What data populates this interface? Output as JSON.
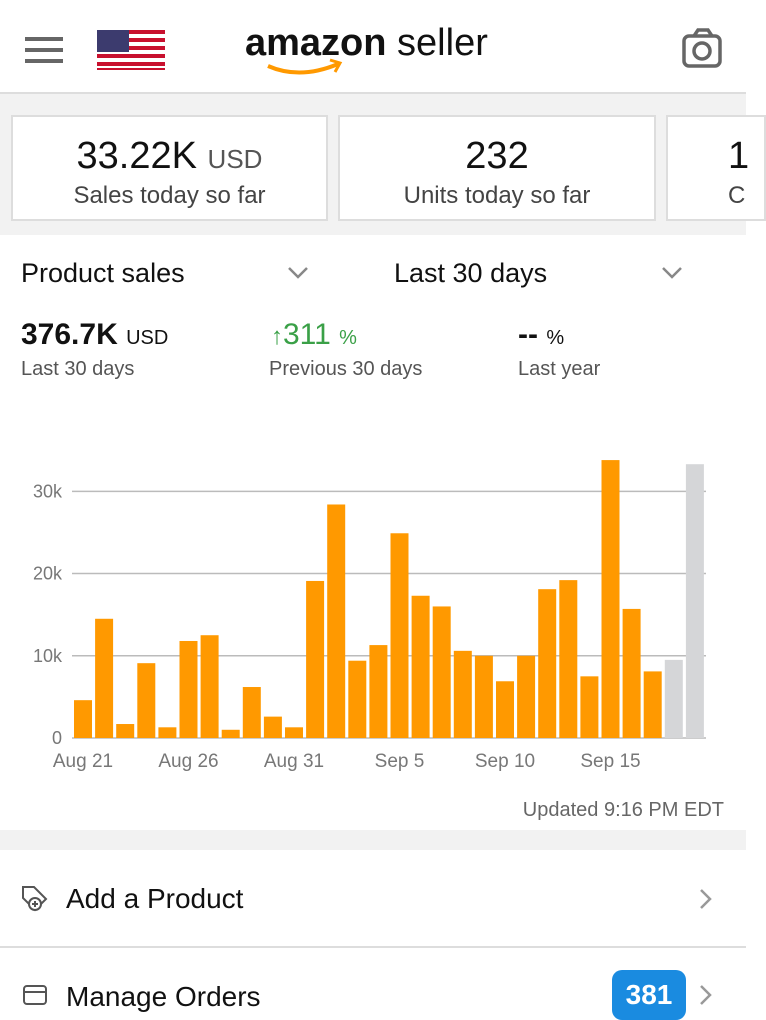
{
  "header": {
    "logo": "amazon",
    "logo_suffix": "seller"
  },
  "cards": [
    {
      "value": "33.22K",
      "unit": "USD",
      "label": "Sales today so far"
    },
    {
      "value": "232",
      "label": "Units today so far"
    },
    {
      "value": "1",
      "label": "C"
    }
  ],
  "selectors": {
    "metric": "Product sales",
    "range": "Last 30 days"
  },
  "stats": [
    {
      "value": "376.7K",
      "unit": "USD",
      "label": "Last 30 days"
    },
    {
      "value": "311",
      "unit": "%",
      "label": "Previous 30 days"
    },
    {
      "value": "--",
      "unit": "%",
      "label": "Last year"
    }
  ],
  "chart_data": {
    "type": "bar",
    "categories": [
      "Aug 21",
      null,
      null,
      null,
      null,
      "Aug 26",
      null,
      null,
      null,
      null,
      "Aug 31",
      null,
      null,
      null,
      null,
      "Sep 5",
      null,
      null,
      null,
      null,
      "Sep 10",
      null,
      null,
      null,
      null,
      "Sep 15",
      null,
      null,
      null,
      null
    ],
    "values": [
      4600,
      14500,
      1700,
      9100,
      1300,
      11800,
      12500,
      1000,
      6200,
      2600,
      1300,
      19100,
      28400,
      9400,
      11300,
      24900,
      17300,
      16000,
      10600,
      10000,
      6900,
      10000,
      18100,
      19200,
      7500,
      33800,
      15700,
      8100,
      9500,
      33300
    ],
    "colors": [
      "#ff9900",
      "#ff9900",
      "#ff9900",
      "#ff9900",
      "#ff9900",
      "#ff9900",
      "#ff9900",
      "#ff9900",
      "#ff9900",
      "#ff9900",
      "#ff9900",
      "#ff9900",
      "#ff9900",
      "#ff9900",
      "#ff9900",
      "#ff9900",
      "#ff9900",
      "#ff9900",
      "#ff9900",
      "#ff9900",
      "#ff9900",
      "#ff9900",
      "#ff9900",
      "#ff9900",
      "#ff9900",
      "#ff9900",
      "#ff9900",
      "#ff9900",
      "#d5d6d8",
      "#d5d6d8"
    ],
    "ylim": [
      0,
      36000
    ],
    "yticks": [
      0,
      {
        "value": 10000,
        "label": "10k"
      },
      {
        "value": 20000,
        "label": "20k"
      },
      {
        "value": 30000,
        "label": "30k"
      }
    ],
    "grid": true
  },
  "updated": "Updated 9:16 PM EDT",
  "menu": [
    {
      "label": "Add a Product"
    },
    {
      "label": "Manage Orders",
      "badge": "381"
    }
  ]
}
